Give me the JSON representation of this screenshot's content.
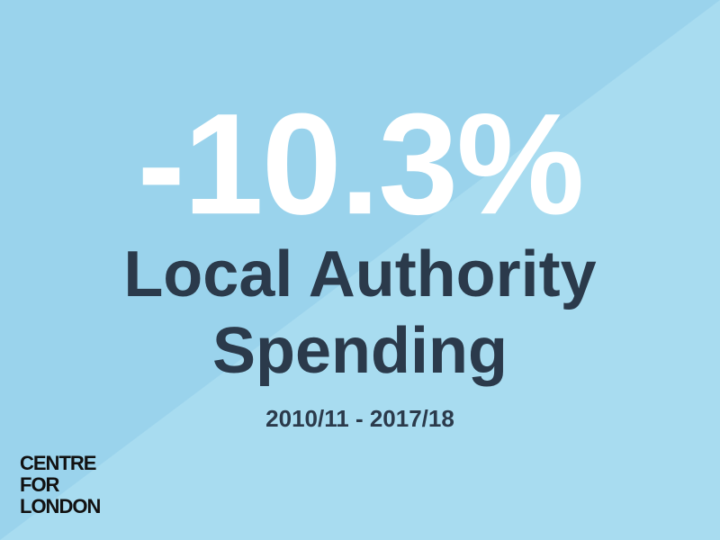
{
  "headline": "-10.3%",
  "title": {
    "line1": "Local Authority",
    "line2": "Spending"
  },
  "period": "2010/11 - 2017/18",
  "logo": {
    "line1": "CENTRE",
    "line2": "FOR",
    "line3": "LONDON"
  }
}
